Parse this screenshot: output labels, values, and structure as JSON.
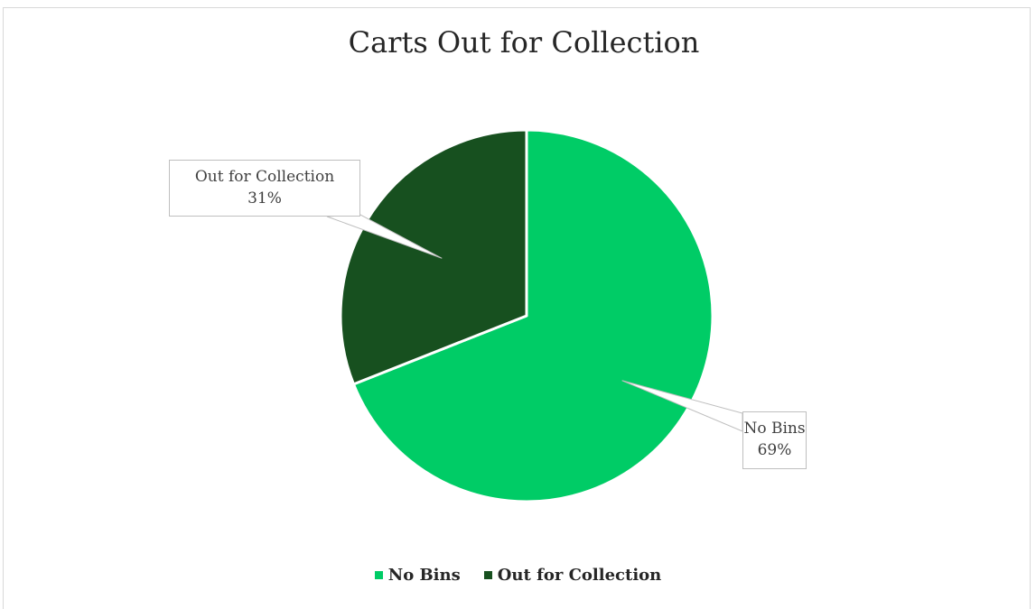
{
  "chart_data": {
    "type": "pie",
    "title": "Carts Out for Collection",
    "slices": [
      {
        "label": "No Bins",
        "value": 69,
        "display": "69%",
        "color": "#00cc66"
      },
      {
        "label": "Out for Collection",
        "value": 31,
        "display": "31%",
        "color": "#17501f"
      }
    ],
    "legend": {
      "placement": "bottom",
      "entries": [
        "No Bins",
        "Out for Collection"
      ]
    },
    "start_angle_deg": 0,
    "direction": "clockwise"
  }
}
